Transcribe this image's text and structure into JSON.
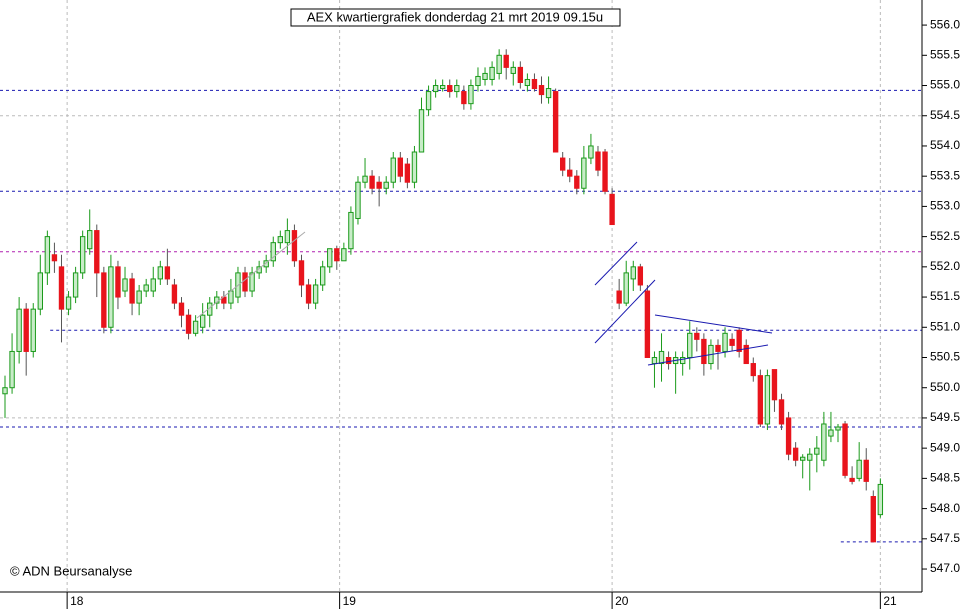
{
  "chart_data": {
    "type": "candlestick",
    "title": "AEX kwartiergrafiek donderdag 21 mrt 2019 09.15u",
    "credit": "© ADN Beursanalyse",
    "up_color": "#1a9a1a",
    "down_color": "#e8141c",
    "xlim": [
      -0.71,
      129.9
    ],
    "xticks": [
      {
        "value": 8.8,
        "label": "18"
      },
      {
        "value": 47.4,
        "label": "19"
      },
      {
        "value": 86,
        "label": "20"
      },
      {
        "value": 124,
        "label": "21"
      }
    ],
    "ylim": [
      546.62,
      556.415
    ],
    "yticks": [
      {
        "value": 547,
        "label": "547.0"
      },
      547.5,
      {
        "value": 548,
        "label": "548.0"
      },
      548.5,
      {
        "value": 549,
        "label": "549.0"
      },
      549.5,
      {
        "value": 550,
        "label": "550.0"
      },
      550.5,
      {
        "value": 551,
        "label": "551.0"
      },
      551.5,
      {
        "value": 552,
        "label": "552.0"
      },
      552.5,
      {
        "value": 553,
        "label": "553.0"
      },
      553.5,
      {
        "value": 554,
        "label": "554.0"
      },
      554.5,
      {
        "value": 555,
        "label": "555.0"
      },
      555.5,
      {
        "value": 556,
        "label": "556.0"
      }
    ],
    "grid": true,
    "ygrid": [
      549.5,
      554.5
    ],
    "levels": [
      {
        "value": 554.92,
        "color": "#1a1ab0"
      },
      {
        "value": 553.25,
        "color": "#1a1ab0"
      },
      {
        "value": 552.25,
        "color": "#b020b0"
      },
      {
        "value": 550.95,
        "color": "#1a1ab0",
        "x_from": 6.4
      },
      {
        "value": 549.35,
        "color": "#1a1ab0"
      },
      {
        "value": 547.45,
        "color": "#1a1ab0",
        "x_from": 118.4
      }
    ],
    "open": [
      549.9,
      550.0,
      550.6,
      551.3,
      550.6,
      551.3,
      551.9,
      552.2,
      552.0,
      551.3,
      551.5,
      551.9,
      552.3,
      552.6,
      551.9,
      551.0,
      552.0,
      551.6,
      551.8,
      551.4,
      551.6,
      551.6,
      551.8,
      552.0,
      551.7,
      551.4,
      551.2,
      550.9,
      551.0,
      551.2,
      551.4,
      551.5,
      551.4,
      551.5,
      551.9,
      551.6,
      551.9,
      552.0,
      552.1,
      552.4,
      552.4,
      552.6,
      552.1,
      551.7,
      551.4,
      551.7,
      552.0,
      552.3,
      552.1,
      552.3,
      552.8,
      553.4,
      553.5,
      553.4,
      553.3,
      553.4,
      553.8,
      553.7,
      553.4,
      553.9,
      554.6,
      554.9,
      554.95,
      555.0,
      554.9,
      554.9,
      554.7,
      555.0,
      555.1,
      555.1,
      555.2,
      555.5,
      555.2,
      555.3,
      555.0,
      555.1,
      555.0,
      554.8,
      554.9,
      553.8,
      553.6,
      553.5,
      553.3,
      553.8,
      553.9,
      553.9,
      553.2,
      551.6,
      551.4,
      551.8,
      552.0,
      551.6,
      550.4,
      550.4,
      550.5,
      550.4,
      550.4,
      550.5,
      550.9,
      550.8,
      550.4,
      550.7,
      550.6,
      550.8,
      550.95,
      550.7,
      550.4,
      550.2,
      549.4,
      550.3,
      549.8,
      549.5,
      549.0,
      548.8,
      548.8,
      548.9,
      548.8,
      549.2,
      549.3,
      549.4,
      548.5,
      548.5,
      548.8,
      548.2,
      547.9
    ],
    "high": [
      550.2,
      550.9,
      551.5,
      551.4,
      551.4,
      552.2,
      552.6,
      552.4,
      552.2,
      551.6,
      552.0,
      552.6,
      552.95,
      552.7,
      552.0,
      552.2,
      552.1,
      552.0,
      551.9,
      551.7,
      551.8,
      552.0,
      552.1,
      552.3,
      551.8,
      551.5,
      551.3,
      551.2,
      551.4,
      551.5,
      551.6,
      551.6,
      551.8,
      552.0,
      552.0,
      552.0,
      552.1,
      552.2,
      552.5,
      552.6,
      552.8,
      552.7,
      552.2,
      551.8,
      551.8,
      552.1,
      552.3,
      552.35,
      552.4,
      553.0,
      553.5,
      553.8,
      553.6,
      553.5,
      553.5,
      553.9,
      553.9,
      553.8,
      554.0,
      554.8,
      555.0,
      555.1,
      555.1,
      555.1,
      555.1,
      555.0,
      555.1,
      555.3,
      555.3,
      555.4,
      555.6,
      555.6,
      555.4,
      555.4,
      555.2,
      555.2,
      555.15,
      555.15,
      554.95,
      553.9,
      553.8,
      553.6,
      554.0,
      554.2,
      554.0,
      553.95,
      553.3,
      551.8,
      552.1,
      552.1,
      552.05,
      551.7,
      550.6,
      550.9,
      550.6,
      550.6,
      550.6,
      551.1,
      551.0,
      550.9,
      550.8,
      550.8,
      551.0,
      550.9,
      551.0,
      550.8,
      550.5,
      550.3,
      550.3,
      550.3,
      549.9,
      549.6,
      549.1,
      548.9,
      549.0,
      549.2,
      549.6,
      549.6,
      549.4,
      549.45,
      548.7,
      549.1,
      549.0,
      548.3,
      548.5
    ],
    "low": [
      549.5,
      549.9,
      550.4,
      550.2,
      550.5,
      551.2,
      551.7,
      551.9,
      550.75,
      551.2,
      551.4,
      551.8,
      552.2,
      551.5,
      550.9,
      550.9,
      551.3,
      551.5,
      551.2,
      551.2,
      551.5,
      551.5,
      551.7,
      551.7,
      551.3,
      551.0,
      550.8,
      550.85,
      550.9,
      551.0,
      551.3,
      551.3,
      551.3,
      551.4,
      551.5,
      551.5,
      551.8,
      551.9,
      552.0,
      552.3,
      552.2,
      552.0,
      551.5,
      551.3,
      551.3,
      551.6,
      551.9,
      551.95,
      552.1,
      552.2,
      552.7,
      553.3,
      553.2,
      553.0,
      553.2,
      553.3,
      553.4,
      553.3,
      553.3,
      553.9,
      554.5,
      554.8,
      554.9,
      554.8,
      554.8,
      554.6,
      554.6,
      554.9,
      555.0,
      555.0,
      555.1,
      555.1,
      555.0,
      554.95,
      554.9,
      554.9,
      554.7,
      554.7,
      553.9,
      553.5,
      553.4,
      553.2,
      553.2,
      553.7,
      553.5,
      553.2,
      552.7,
      551.3,
      551.35,
      551.6,
      551.6,
      550.5,
      550.0,
      550.1,
      550.3,
      549.9,
      550.2,
      550.3,
      550.6,
      550.2,
      550.3,
      550.3,
      550.5,
      550.6,
      550.5,
      550.4,
      550.1,
      549.35,
      549.3,
      549.6,
      549.3,
      548.8,
      548.7,
      548.5,
      548.3,
      548.6,
      548.7,
      549.1,
      549.1,
      548.5,
      548.4,
      548.45,
      548.3,
      547.45,
      547.85
    ],
    "close": [
      550.0,
      550.6,
      551.3,
      550.6,
      551.3,
      551.9,
      552.5,
      552.1,
      551.3,
      551.5,
      551.9,
      552.5,
      552.6,
      551.9,
      551.0,
      552.0,
      551.5,
      551.8,
      551.4,
      551.6,
      551.7,
      551.8,
      552.0,
      551.8,
      551.4,
      551.2,
      550.9,
      551.1,
      551.2,
      551.4,
      551.5,
      551.4,
      551.6,
      551.9,
      551.6,
      551.9,
      552.0,
      552.1,
      552.4,
      552.5,
      552.6,
      552.1,
      551.7,
      551.4,
      551.7,
      552.0,
      552.3,
      552.1,
      552.3,
      552.9,
      553.4,
      553.5,
      553.3,
      553.3,
      553.4,
      553.8,
      553.5,
      553.4,
      553.9,
      554.6,
      554.9,
      555.0,
      555.0,
      554.9,
      555.0,
      554.7,
      555.0,
      555.15,
      555.2,
      555.3,
      555.5,
      555.3,
      555.3,
      555.05,
      555.1,
      554.95,
      554.85,
      554.95,
      553.9,
      553.6,
      553.5,
      553.3,
      553.8,
      554.0,
      553.6,
      553.25,
      552.7,
      551.4,
      551.9,
      552.0,
      551.7,
      550.5,
      550.5,
      550.6,
      550.4,
      550.5,
      550.5,
      550.9,
      550.8,
      550.4,
      550.7,
      550.6,
      550.9,
      550.7,
      550.6,
      550.4,
      550.2,
      549.4,
      550.2,
      549.8,
      549.4,
      548.9,
      548.8,
      548.85,
      548.9,
      549.0,
      549.4,
      549.3,
      549.35,
      548.55,
      548.45,
      548.8,
      548.45,
      547.45,
      548.4
    ]
  }
}
